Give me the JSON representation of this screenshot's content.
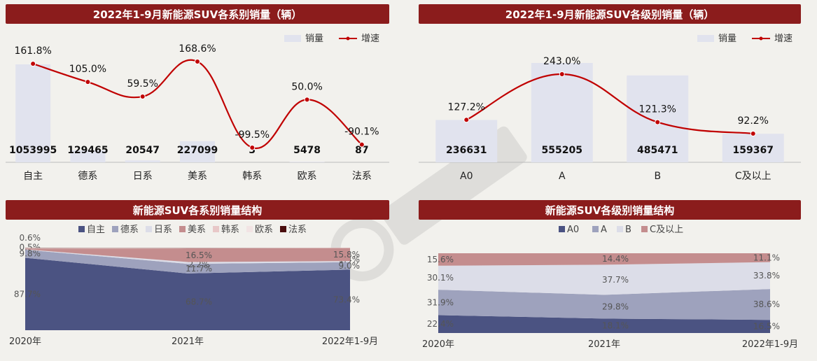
{
  "colors": {
    "title_bg": "#8b1c1c",
    "bar": "#e1e3ee",
    "line": "#c00000",
    "area_zizhu": "#4b5382",
    "area_dexi": "#9ea2bd",
    "area_rixi": "#dcdde8",
    "area_meixi": "#c48d8e",
    "area_hanxi": "#e8c8c8",
    "area_ouxi": "#f2e4e4",
    "area_faxi": "#4a0d0d",
    "area_A0": "#4b5382",
    "area_A": "#9ea2bd",
    "area_B": "#dcdde8",
    "area_C": "#c48d8e"
  },
  "chart_data": [
    {
      "type": "bar",
      "title": "2022年1-9月新能源SUV各系别销量（辆）",
      "categories": [
        "自主",
        "德系",
        "日系",
        "美系",
        "韩系",
        "欧系",
        "法系"
      ],
      "series": [
        {
          "name": "销量",
          "type": "bar",
          "values": [
            1053995,
            129465,
            20547,
            227099,
            3,
            5478,
            87
          ],
          "labels": [
            "1053995",
            "129465",
            "20547",
            "227099",
            "3",
            "5478",
            "87"
          ]
        },
        {
          "name": "增速",
          "type": "line",
          "values": [
            161.8,
            105.0,
            59.5,
            168.6,
            -99.5,
            50.0,
            -90.1
          ],
          "labels": [
            "161.8%",
            "105.0%",
            "59.5%",
            "168.6%",
            "-99.5%",
            "50.0%",
            "-90.1%"
          ]
        }
      ],
      "legend": "top-right"
    },
    {
      "type": "bar",
      "title": "2022年1-9月新能源SUV各级别销量（辆）",
      "categories": [
        "A0",
        "A",
        "B",
        "C及以上"
      ],
      "series": [
        {
          "name": "销量",
          "type": "bar",
          "values": [
            236631,
            555205,
            485471,
            159367
          ],
          "labels": [
            "236631",
            "555205",
            "485471",
            "159367"
          ]
        },
        {
          "name": "增速",
          "type": "line",
          "values": [
            127.2,
            243.0,
            121.3,
            92.2
          ],
          "labels": [
            "127.2%",
            "243.0%",
            "121.3%",
            "92.2%"
          ]
        }
      ],
      "legend": "top-right"
    },
    {
      "type": "area",
      "title": "新能源SUV各系别销量结构",
      "categories": [
        "2020年",
        "2021年",
        "2022年1-9月"
      ],
      "series": [
        {
          "name": "自主",
          "values": [
            87.7,
            68.7,
            73.4
          ],
          "labels": [
            "87.7%",
            "68.7%",
            "73.4%"
          ]
        },
        {
          "name": "德系",
          "values": [
            9.8,
            11.7,
            9.0
          ],
          "labels": [
            "9.8%",
            "11.7%",
            "9.0%"
          ]
        },
        {
          "name": "日系",
          "values": [
            0.5,
            2.2,
            1.4
          ],
          "labels": [
            "0.5%",
            "2.2%",
            "1.4%"
          ]
        },
        {
          "name": "美系",
          "values": [
            0.6,
            16.5,
            15.8
          ],
          "labels": [
            "0.6%",
            "16.5%",
            "15.8%"
          ]
        },
        {
          "name": "韩系",
          "values": [
            0.7,
            0.3,
            0.2
          ],
          "labels": []
        },
        {
          "name": "欧系",
          "values": [
            0.4,
            0.4,
            0.2
          ],
          "labels": []
        },
        {
          "name": "法系",
          "values": [
            0.3,
            0.2,
            0.0
          ],
          "labels": []
        }
      ],
      "legend": "top"
    },
    {
      "type": "area",
      "title": "新能源SUV各级别销量结构",
      "categories": [
        "2020年",
        "2021年",
        "2022年1-9月"
      ],
      "series": [
        {
          "name": "A0",
          "values": [
            22.4,
            18.1,
            16.5
          ],
          "labels": [
            "22.4%",
            "18.1%",
            "16.5%"
          ]
        },
        {
          "name": "A",
          "values": [
            31.9,
            29.8,
            38.6
          ],
          "labels": [
            "31.9%",
            "29.8%",
            "38.6%"
          ]
        },
        {
          "name": "B",
          "values": [
            30.1,
            37.7,
            33.8
          ],
          "labels": [
            "30.1%",
            "37.7%",
            "33.8%"
          ]
        },
        {
          "name": "C及以上",
          "values": [
            15.6,
            14.4,
            11.1
          ],
          "labels": [
            "15.6%",
            "14.4%",
            "11.1%"
          ]
        }
      ],
      "legend": "top"
    }
  ]
}
